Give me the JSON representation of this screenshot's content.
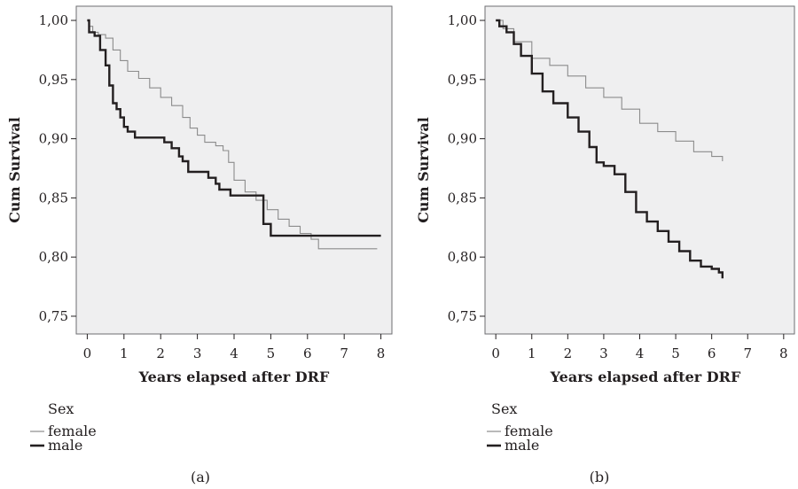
{
  "chart_data": [
    {
      "type": "line",
      "panel_label": "(a)",
      "xlabel": "Years elapsed after DRF",
      "ylabel": "Cum Survival",
      "xlim": [
        -0.3,
        8.3
      ],
      "ylim": [
        0.735,
        1.012
      ],
      "x_ticks": [
        0,
        1,
        2,
        3,
        4,
        5,
        6,
        7,
        8
      ],
      "x_tick_labels": [
        "0",
        "1",
        "2",
        "3",
        "4",
        "5",
        "6",
        "7",
        "8"
      ],
      "y_ticks": [
        0.75,
        0.8,
        0.85,
        0.9,
        0.95,
        1.0
      ],
      "y_tick_labels": [
        "0,75",
        "0,80",
        "0,85",
        "0,90",
        "0,95",
        "1,00"
      ],
      "grid": false,
      "legend": {
        "title": "Sex",
        "placement": "below-left"
      },
      "series": [
        {
          "name": "female",
          "color": "#8c8c8c",
          "weight": "thin",
          "x": [
            0,
            0.05,
            0.15,
            0.3,
            0.5,
            0.7,
            0.9,
            1.1,
            1.4,
            1.7,
            2.0,
            2.3,
            2.6,
            2.8,
            3.0,
            3.2,
            3.5,
            3.7,
            3.85,
            4.0,
            4.3,
            4.6,
            4.9,
            5.2,
            5.5,
            5.8,
            6.1,
            6.3,
            6.8,
            7.9
          ],
          "y": [
            1.0,
            0.995,
            0.99,
            0.988,
            0.985,
            0.975,
            0.966,
            0.957,
            0.951,
            0.943,
            0.935,
            0.928,
            0.918,
            0.909,
            0.903,
            0.897,
            0.894,
            0.89,
            0.88,
            0.865,
            0.855,
            0.848,
            0.84,
            0.832,
            0.826,
            0.82,
            0.815,
            0.807,
            0.807,
            0.807
          ]
        },
        {
          "name": "male",
          "color": "#231f20",
          "weight": "thick",
          "x": [
            0,
            0.05,
            0.2,
            0.35,
            0.5,
            0.6,
            0.7,
            0.8,
            0.9,
            1.0,
            1.1,
            1.3,
            2.0,
            2.1,
            2.3,
            2.5,
            2.6,
            2.75,
            3.0,
            3.3,
            3.5,
            3.6,
            3.8,
            3.9,
            4.0,
            4.7,
            4.8,
            4.9,
            5.0,
            5.2,
            8.0
          ],
          "y": [
            1.0,
            0.99,
            0.987,
            0.975,
            0.962,
            0.945,
            0.93,
            0.925,
            0.918,
            0.91,
            0.906,
            0.901,
            0.901,
            0.897,
            0.892,
            0.885,
            0.881,
            0.872,
            0.872,
            0.867,
            0.862,
            0.857,
            0.857,
            0.852,
            0.852,
            0.852,
            0.828,
            0.828,
            0.818,
            0.818,
            0.818
          ]
        }
      ]
    },
    {
      "type": "line",
      "panel_label": "(b)",
      "xlabel": "Years elapsed after DRF",
      "ylabel": "Cum Survival",
      "xlim": [
        -0.3,
        8.3
      ],
      "ylim": [
        0.735,
        1.012
      ],
      "x_ticks": [
        0,
        1,
        2,
        3,
        4,
        5,
        6,
        7,
        8
      ],
      "x_tick_labels": [
        "0",
        "1",
        "2",
        "3",
        "4",
        "5",
        "6",
        "7",
        "8"
      ],
      "y_ticks": [
        0.75,
        0.8,
        0.85,
        0.9,
        0.95,
        1.0
      ],
      "y_tick_labels": [
        "0,75",
        "0,80",
        "0,85",
        "0,90",
        "0,95",
        "1,00"
      ],
      "grid": false,
      "legend": {
        "title": "Sex",
        "placement": "below-left"
      },
      "series": [
        {
          "name": "female",
          "color": "#8c8c8c",
          "weight": "thin",
          "x": [
            0,
            0.2,
            0.5,
            1.0,
            1.5,
            2.0,
            2.5,
            3.0,
            3.5,
            4.0,
            4.5,
            5.0,
            5.5,
            6.0,
            6.3
          ],
          "y": [
            1.0,
            0.993,
            0.982,
            0.968,
            0.962,
            0.953,
            0.943,
            0.935,
            0.925,
            0.913,
            0.906,
            0.898,
            0.889,
            0.885,
            0.881
          ]
        },
        {
          "name": "male",
          "color": "#231f20",
          "weight": "thick",
          "x": [
            0,
            0.1,
            0.3,
            0.5,
            0.7,
            1.0,
            1.3,
            1.6,
            2.0,
            2.3,
            2.6,
            2.8,
            3.0,
            3.3,
            3.6,
            3.9,
            4.2,
            4.5,
            4.8,
            5.1,
            5.4,
            5.7,
            6.0,
            6.2,
            6.3
          ],
          "y": [
            1.0,
            0.995,
            0.99,
            0.98,
            0.97,
            0.955,
            0.94,
            0.93,
            0.918,
            0.906,
            0.893,
            0.88,
            0.877,
            0.87,
            0.855,
            0.838,
            0.83,
            0.822,
            0.813,
            0.805,
            0.797,
            0.792,
            0.79,
            0.787,
            0.782
          ]
        }
      ]
    }
  ]
}
